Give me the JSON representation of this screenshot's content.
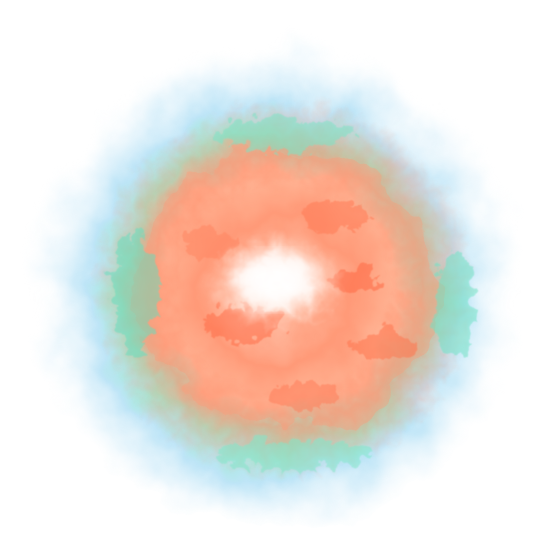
{
  "image": {
    "subject": "turbulent-fluid-swirl",
    "background_color": "#ffffff",
    "palette": {
      "core": "#fff6f0",
      "inner": "#ff8a66",
      "mid": "#ffb08f",
      "transition": "#7ee8c8",
      "outer": "#9fd8f5",
      "edge": "#d8f0fb"
    }
  }
}
